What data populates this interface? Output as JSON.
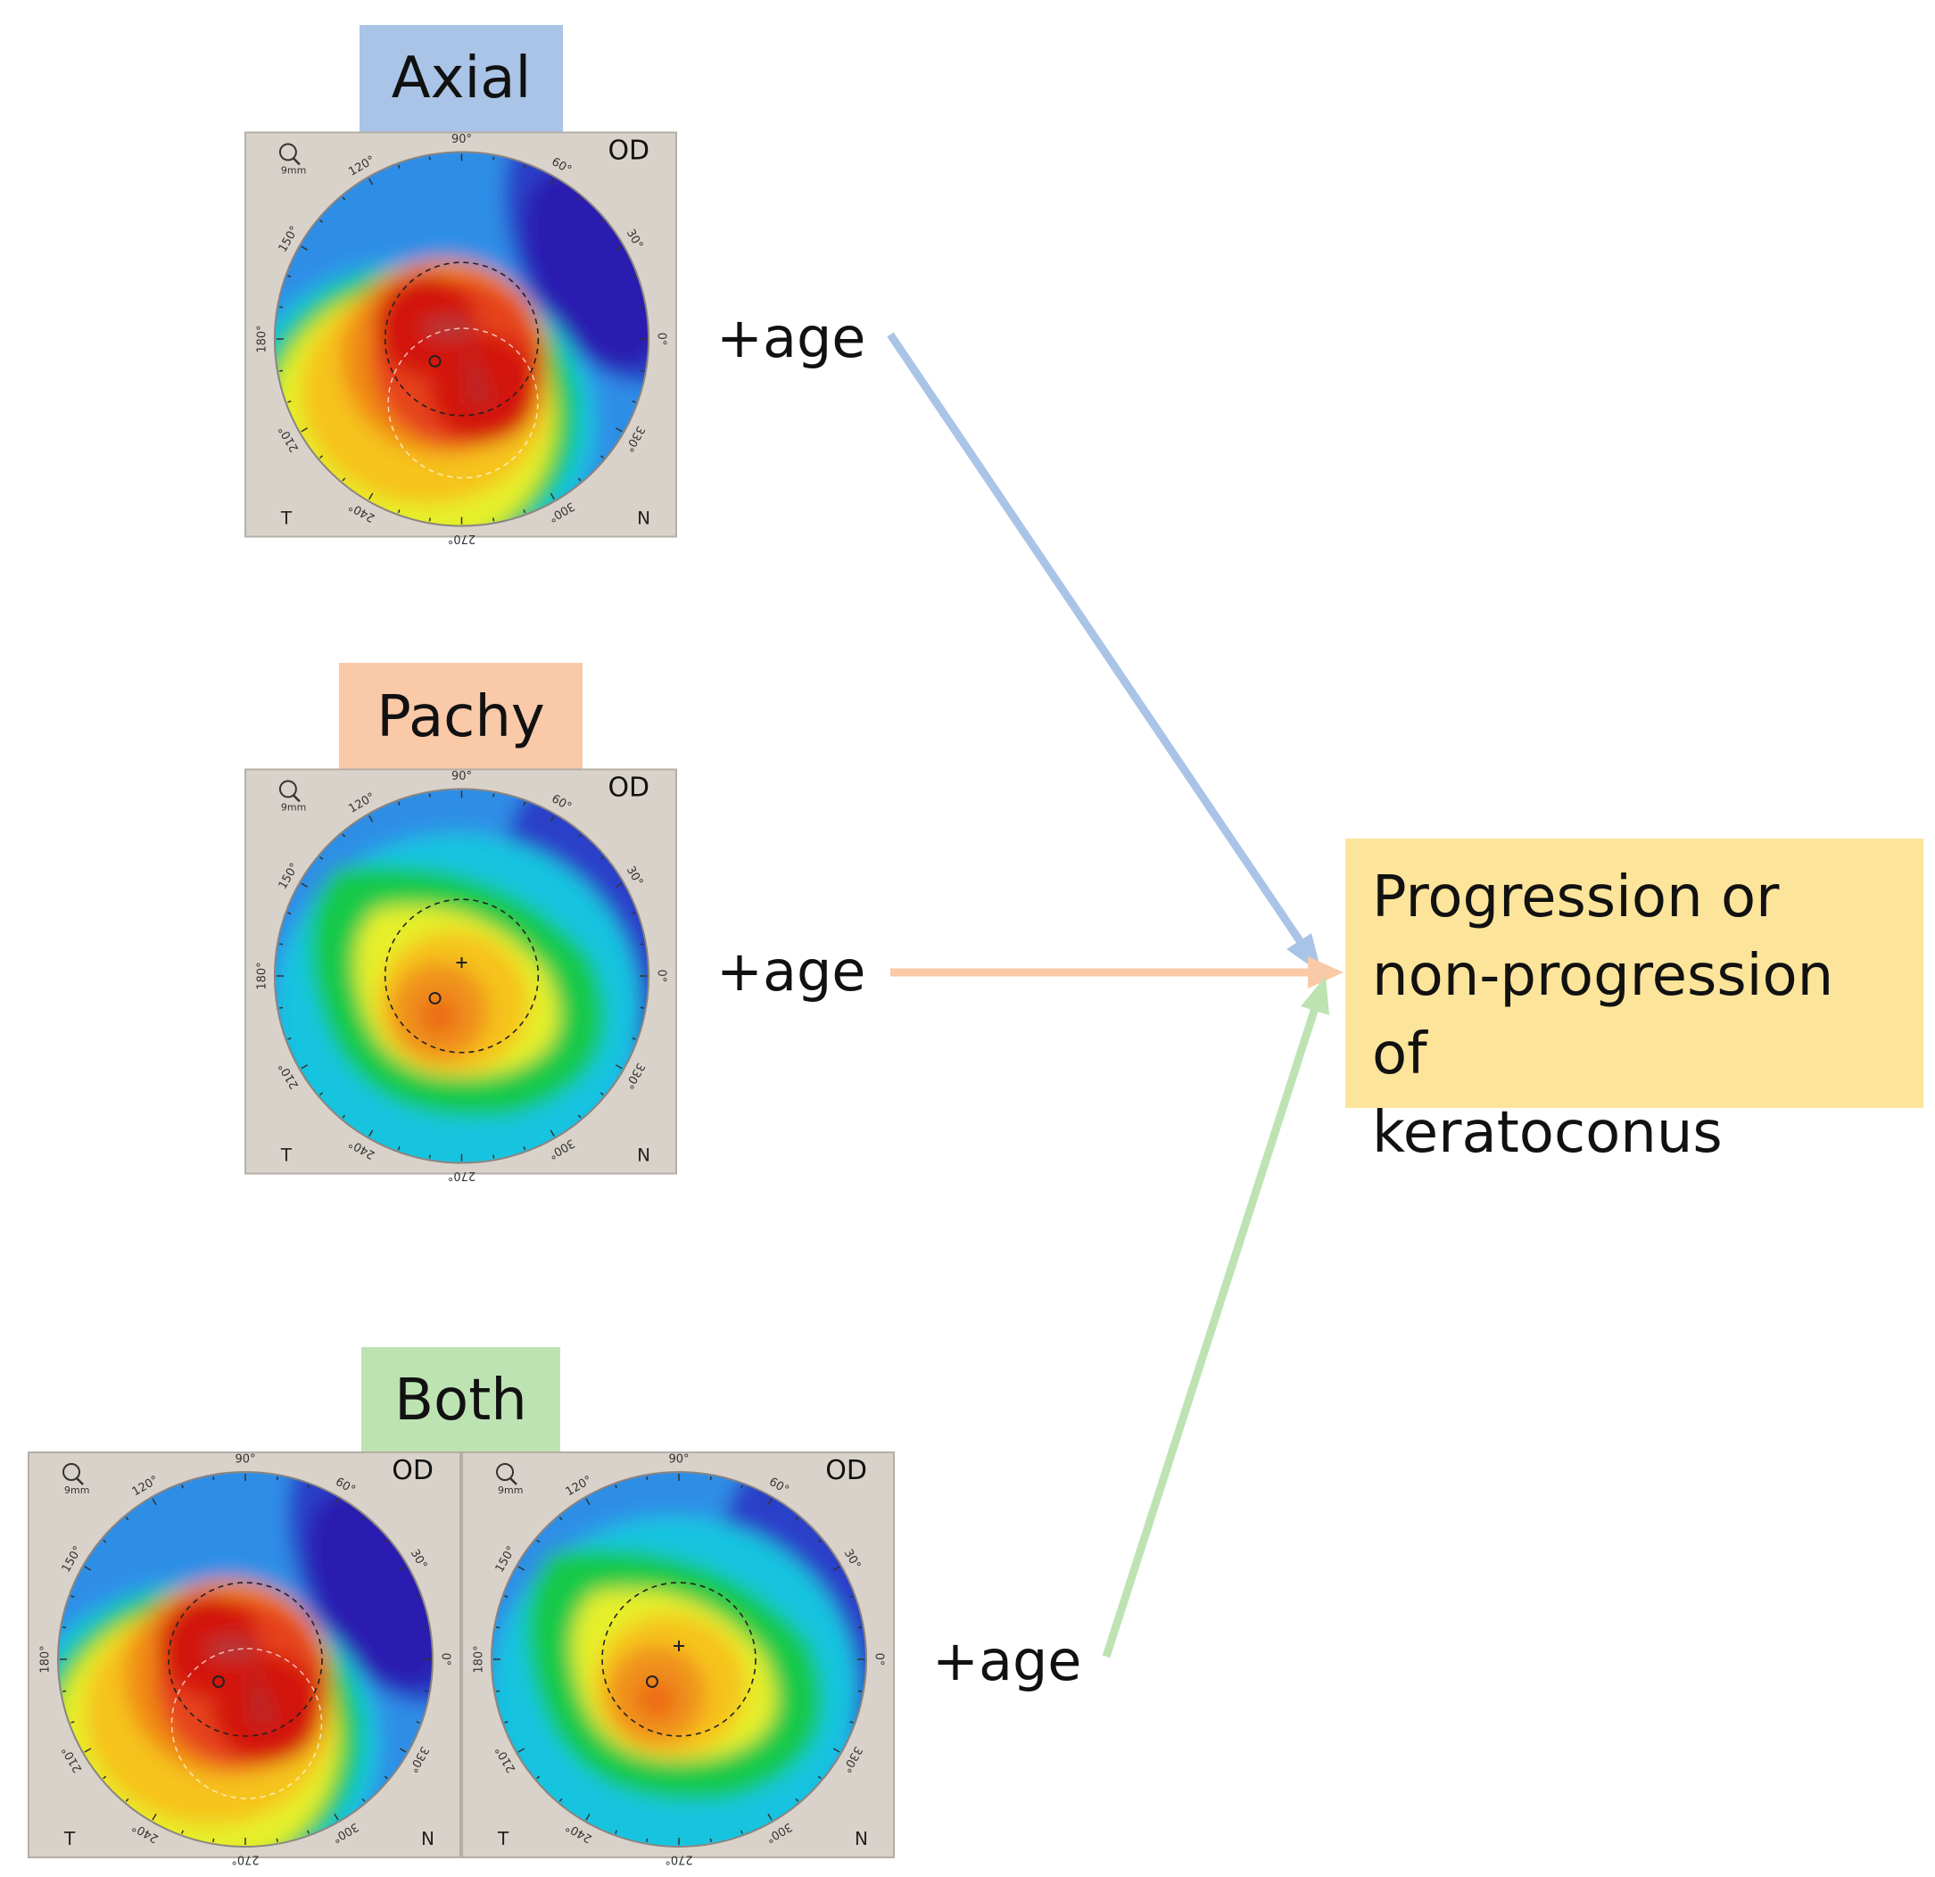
{
  "colors": {
    "axial_label": "#a9c4e6",
    "pachy_label": "#f9c9a8",
    "both_label": "#bde3b3",
    "outcome_box": "#fce49a",
    "map_panel": "#d8d2ca"
  },
  "inputs": {
    "axial": {
      "label": "Axial",
      "age": "+age"
    },
    "pachy": {
      "label": "Pachy",
      "age": "+age"
    },
    "both": {
      "label": "Both",
      "age": "+age"
    }
  },
  "outcome": {
    "lines": [
      "Progression or",
      "non-progression of",
      "keratoconus"
    ]
  },
  "map": {
    "eye": "OD",
    "zoom": "9mm",
    "temporal": "T",
    "nasal": "N",
    "angles": [
      "90°",
      "60°",
      "30°",
      "0°",
      "330°",
      "300°",
      "270°",
      "240°",
      "210°",
      "180°",
      "150°",
      "120°"
    ]
  }
}
